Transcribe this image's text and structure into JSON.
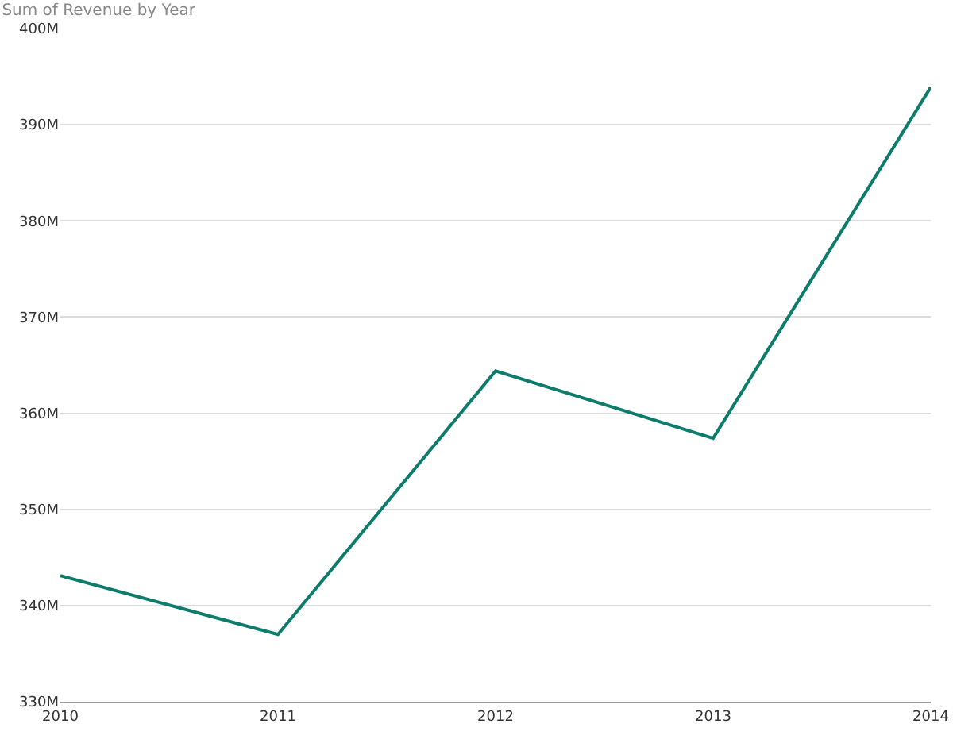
{
  "chart_data": {
    "type": "line",
    "title": "Sum of Revenue by Year",
    "categories": [
      "2010",
      "2011",
      "2012",
      "2013",
      "2014"
    ],
    "series": [
      {
        "color": "#0e7c6b",
        "values": [
          343.1,
          337.0,
          364.4,
          357.4,
          393.9
        ]
      }
    ],
    "ylim": [
      330,
      400
    ],
    "yticks": [
      {
        "value": 330,
        "label": "330M"
      },
      {
        "value": 340,
        "label": "340M"
      },
      {
        "value": 350,
        "label": "350M"
      },
      {
        "value": 360,
        "label": "360M"
      },
      {
        "value": 370,
        "label": "370M"
      },
      {
        "value": 380,
        "label": "380M"
      },
      {
        "value": 390,
        "label": "390M"
      },
      {
        "value": 400,
        "label": "400M"
      }
    ],
    "grid": "y",
    "marker": "none",
    "line_style": "solid"
  }
}
